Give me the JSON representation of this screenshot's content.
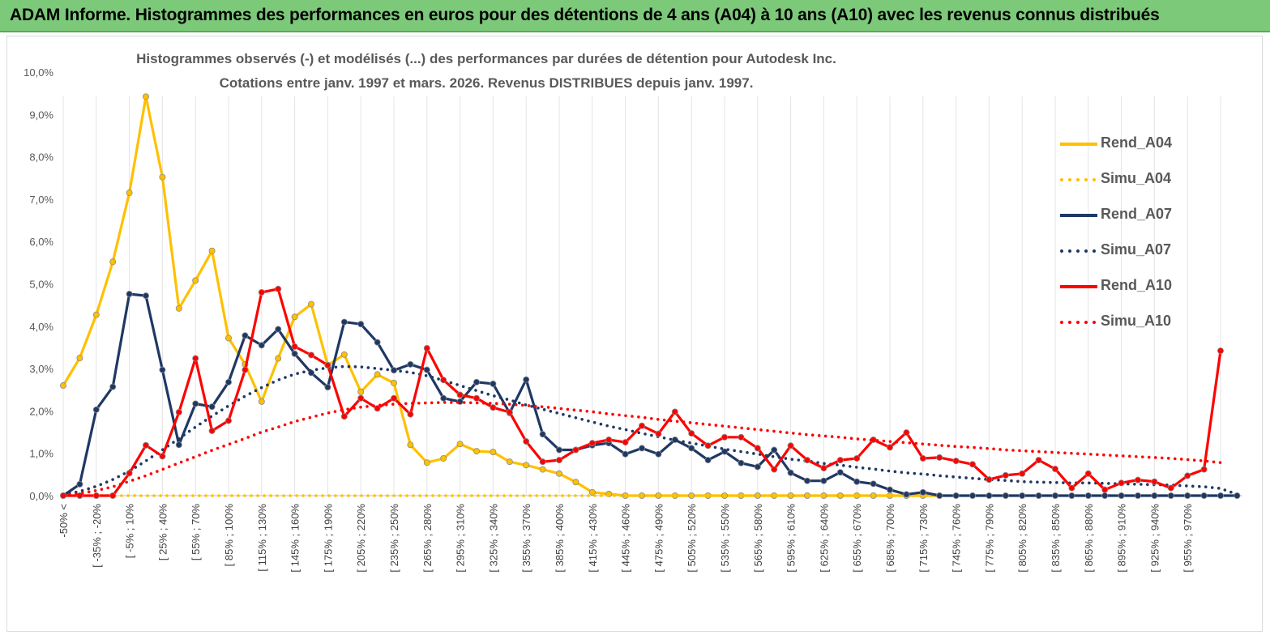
{
  "banner": {
    "title": "ADAM Informe. Histogrammes des performances en euros pour des détentions de 4 ans (A04) à 10 ans (A10) avec les revenus connus distribués"
  },
  "colors": {
    "a04": "#ffc000",
    "a07": "#1f3864",
    "a10": "#ff0000",
    "banner": "#7dc97a"
  },
  "chart_data": {
    "type": "line",
    "title": "Histogrammes observés (-) et modélisés (...) des performances par durées de détention pour Autodesk Inc.",
    "subtitle": "Cotations entre janv. 1997 et mars. 2026. Revenus DISTRIBUES depuis janv. 1997.",
    "xlabel": "",
    "ylabel": "",
    "ylim": [
      0,
      10
    ],
    "ytick_labels": [
      "0,0%",
      "1,0%",
      "2,0%",
      "3,0%",
      "4,0%",
      "5,0%",
      "6,0%",
      "7,0%",
      "8,0%",
      "9,0%",
      "10,0%"
    ],
    "grid": "vertical",
    "legend_position": "right",
    "x_tick_labels": [
      "-50% <",
      "[ -35% ; -20%",
      "[ -5% ; 10%",
      "[ 25% ; 40%",
      "[ 55% ; 70%",
      "[ 85% ; 100%",
      "[ 115% ; 130%",
      "[ 145% ; 160%",
      "[ 175% ; 190%",
      "[ 205% ; 220%",
      "[ 235% ; 250%",
      "[ 265% ; 280%",
      "[ 295% ; 310%",
      "[ 325% ; 340%",
      "[ 355% ; 370%",
      "[ 385% ; 400%",
      "[ 415% ; 430%",
      "[ 445% ; 460%",
      "[ 475% ; 490%",
      "[ 505% ; 520%",
      "[ 535% ; 550%",
      "[ 565% ; 580%",
      "[ 595% ; 610%",
      "[ 625% ; 640%",
      "[ 655% ; 670%",
      "[ 685% ; 700%",
      "[ 715% ; 730%",
      "[ 745% ; 760%",
      "[ 775% ; 790%",
      "[ 805% ; 820%",
      "[ 835% ; 850%",
      "[ 865% ; 880%",
      "[ 895% ; 910%",
      "[ 925% ; 940%",
      "[ 955% ; 970%"
    ],
    "n_points": 72,
    "series": [
      {
        "name": "Rend_A04",
        "style": "solid",
        "color": "#ffc000",
        "values": [
          2.6,
          3.25,
          4.27,
          5.52,
          7.15,
          9.42,
          7.52,
          4.42,
          5.08,
          5.78,
          3.72,
          3.1,
          2.22,
          3.24,
          4.22,
          4.52,
          3.08,
          3.33,
          2.45,
          2.86,
          2.66,
          1.2,
          0.78,
          0.88,
          1.22,
          1.05,
          1.03,
          0.8,
          0.72,
          0.62,
          0.52,
          0.32,
          0.08,
          0.04,
          0,
          0,
          0,
          0,
          0,
          0,
          0,
          0,
          0,
          0,
          0,
          0,
          0,
          0,
          0,
          0,
          0,
          0,
          0,
          0,
          null,
          null,
          null,
          null,
          null,
          null,
          null,
          null,
          null,
          null,
          null,
          null,
          null,
          null,
          null,
          null,
          null,
          null
        ]
      },
      {
        "name": "Simu_A04",
        "style": "dotted",
        "color": "#ffc000",
        "values": [
          0,
          0,
          0,
          0,
          0,
          0,
          0,
          0,
          0,
          0,
          0,
          0,
          0,
          0,
          0,
          0,
          0,
          0,
          0,
          0,
          0,
          0,
          0,
          0,
          0,
          0,
          0,
          0,
          0,
          0,
          0,
          0,
          0,
          0,
          0,
          0,
          0,
          0,
          0,
          0,
          0,
          0,
          0,
          0,
          0,
          0,
          0,
          0,
          0,
          0,
          0,
          0,
          0,
          0,
          null,
          null,
          null,
          null,
          null,
          null,
          null,
          null,
          null,
          null,
          null,
          null,
          null,
          null,
          null,
          null,
          null,
          null
        ]
      },
      {
        "name": "Rend_A07",
        "style": "solid",
        "color": "#1f3864",
        "values": [
          0,
          0.27,
          2.03,
          2.57,
          4.76,
          4.72,
          2.97,
          1.2,
          2.17,
          2.1,
          2.68,
          3.78,
          3.55,
          3.93,
          3.35,
          2.9,
          2.56,
          4.1,
          4.05,
          3.62,
          2.96,
          3.1,
          2.97,
          2.3,
          2.22,
          2.68,
          2.64,
          1.95,
          2.74,
          1.45,
          1.08,
          1.08,
          1.19,
          1.24,
          0.98,
          1.12,
          0.98,
          1.32,
          1.12,
          0.84,
          1.04,
          0.77,
          0.68,
          1.08,
          0.54,
          0.35,
          0.35,
          0.55,
          0.33,
          0.28,
          0.14,
          0.03,
          0.08,
          0,
          0,
          0,
          0,
          0,
          0,
          0,
          0,
          0,
          0,
          0,
          0,
          0,
          0,
          0,
          0,
          0,
          0,
          0
        ]
      },
      {
        "name": "Simu_A07",
        "style": "dotted",
        "color": "#1f3864",
        "values": [
          0.03,
          0.1,
          0.22,
          0.38,
          0.58,
          0.82,
          1.08,
          1.35,
          1.62,
          1.88,
          2.12,
          2.35,
          2.55,
          2.73,
          2.87,
          2.96,
          3.02,
          3.05,
          3.04,
          3.0,
          2.96,
          2.91,
          2.83,
          2.72,
          2.6,
          2.48,
          2.36,
          2.26,
          2.14,
          2.04,
          1.94,
          1.84,
          1.74,
          1.64,
          1.56,
          1.47,
          1.39,
          1.31,
          1.24,
          1.17,
          1.1,
          1.04,
          0.98,
          0.92,
          0.86,
          0.82,
          0.76,
          0.72,
          0.67,
          0.63,
          0.58,
          0.54,
          0.51,
          0.47,
          0.44,
          0.41,
          0.38,
          0.36,
          0.33,
          0.32,
          0.31,
          0.3,
          0.3,
          0.29,
          0.28,
          0.27,
          0.26,
          0.25,
          0.23,
          0.21,
          0.17,
          0.03
        ]
      },
      {
        "name": "Rend_A10",
        "style": "solid",
        "color": "#ff0000",
        "values": [
          0,
          0,
          0,
          0,
          0.53,
          1.19,
          0.93,
          1.97,
          3.24,
          1.53,
          1.77,
          2.97,
          4.8,
          4.88,
          3.52,
          3.32,
          3.08,
          1.87,
          2.3,
          2.06,
          2.3,
          1.92,
          3.48,
          2.73,
          2.38,
          2.3,
          2.08,
          1.97,
          1.28,
          0.8,
          0.84,
          1.08,
          1.24,
          1.32,
          1.26,
          1.65,
          1.46,
          1.98,
          1.47,
          1.18,
          1.38,
          1.38,
          1.12,
          0.62,
          1.18,
          0.84,
          0.65,
          0.84,
          0.88,
          1.32,
          1.14,
          1.49,
          0.88,
          0.9,
          0.82,
          0.74,
          0.38,
          0.48,
          0.52,
          0.84,
          0.63,
          0.18,
          0.52,
          0.14,
          0.3,
          0.37,
          0.33,
          0.18,
          0.47,
          0.62,
          3.42,
          null
        ]
      },
      {
        "name": "Simu_A10",
        "style": "dotted",
        "color": "#ff0000",
        "values": [
          0.01,
          0.05,
          0.12,
          0.21,
          0.34,
          0.47,
          0.62,
          0.77,
          0.92,
          1.07,
          1.21,
          1.35,
          1.5,
          1.62,
          1.75,
          1.85,
          1.95,
          2.03,
          2.09,
          2.13,
          2.16,
          2.18,
          2.19,
          2.2,
          2.2,
          2.19,
          2.18,
          2.16,
          2.13,
          2.1,
          2.06,
          2.02,
          1.98,
          1.93,
          1.89,
          1.85,
          1.8,
          1.76,
          1.72,
          1.68,
          1.64,
          1.6,
          1.56,
          1.52,
          1.48,
          1.44,
          1.41,
          1.38,
          1.34,
          1.31,
          1.28,
          1.25,
          1.22,
          1.19,
          1.16,
          1.14,
          1.11,
          1.08,
          1.06,
          1.04,
          1.02,
          1.0,
          0.98,
          0.96,
          0.94,
          0.92,
          0.9,
          0.88,
          0.85,
          0.82,
          0.78,
          null
        ]
      }
    ]
  }
}
